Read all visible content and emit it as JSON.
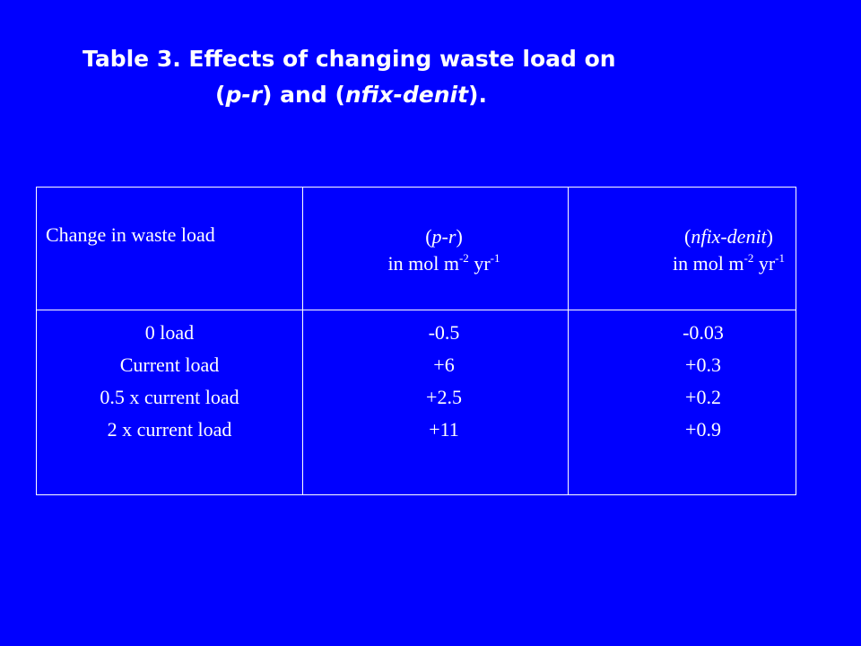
{
  "title": {
    "line1": "Table 3.  Effects of changing waste load on",
    "line2_prefix": "(",
    "line2_pr": "p-r",
    "line2_mid": ") and (",
    "line2_nfix": "nfix-denit",
    "line2_suffix": ")."
  },
  "table": {
    "headers": {
      "col1": "Change in waste load",
      "col2_open": "(",
      "col2_var": "p-r",
      "col2_close": ")",
      "col2_unit_a": "in mol m",
      "col2_unit_exp1": "-2",
      "col2_unit_b": " yr",
      "col2_unit_exp2": "-1",
      "col3_open": "(",
      "col3_var": "nfix-denit",
      "col3_close": ")",
      "col3_unit_a": "in mol m",
      "col3_unit_exp1": "-2",
      "col3_unit_b": " yr",
      "col3_unit_exp2": "-1"
    },
    "rows": [
      {
        "load": "0 load",
        "pr": "-0.5",
        "nfix": "-0.03"
      },
      {
        "load": "Current load",
        "pr": "+6",
        "nfix": "+0.3"
      },
      {
        "load": "0.5 x current load",
        "pr": "+2.5",
        "nfix": "+0.2"
      },
      {
        "load": "2 x current load",
        "pr": "+11",
        "nfix": "+0.9"
      }
    ]
  }
}
